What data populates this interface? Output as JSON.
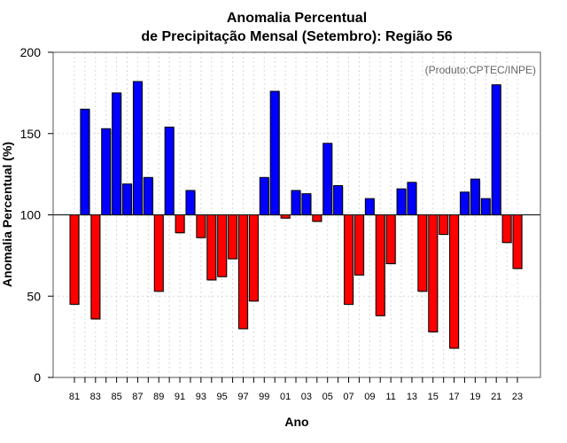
{
  "chart_data": {
    "type": "bar",
    "title": "Anomalia Percentual",
    "subtitle": "de Precipitação Mensal (Setembro): Região 56",
    "xlabel": "Ano",
    "ylabel": "Anomalia Percentual (%)",
    "annotation": "(Produto:CPTEC/INPE)",
    "ylim": [
      0,
      200
    ],
    "yticks": [
      0,
      50,
      100,
      150,
      200
    ],
    "baseline": 100,
    "grid": true,
    "colors": {
      "above": "#0000ff",
      "below": "#ff0000",
      "border": "#000000"
    },
    "categories": [
      "81",
      "82",
      "83",
      "84",
      "85",
      "86",
      "87",
      "88",
      "89",
      "90",
      "91",
      "92",
      "93",
      "94",
      "95",
      "96",
      "97",
      "98",
      "99",
      "00",
      "01",
      "02",
      "03",
      "04",
      "05",
      "06",
      "07",
      "08",
      "09",
      "10",
      "11",
      "12",
      "13",
      "14",
      "15",
      "16",
      "17",
      "18",
      "19",
      "20",
      "21",
      "22",
      "23"
    ],
    "xtick_labels": [
      "81",
      "83",
      "85",
      "87",
      "89",
      "91",
      "93",
      "95",
      "97",
      "99",
      "01",
      "03",
      "05",
      "07",
      "09",
      "11",
      "13",
      "15",
      "17",
      "19",
      "21",
      "23"
    ],
    "values": [
      45,
      165,
      36,
      153,
      175,
      119,
      182,
      123,
      53,
      154,
      89,
      115,
      86,
      60,
      62,
      73,
      30,
      47,
      123,
      176,
      98,
      115,
      113,
      96,
      144,
      118,
      45,
      63,
      110,
      38,
      70,
      116,
      120,
      53,
      28,
      88,
      18,
      114,
      122,
      110,
      180,
      83,
      67
    ]
  }
}
